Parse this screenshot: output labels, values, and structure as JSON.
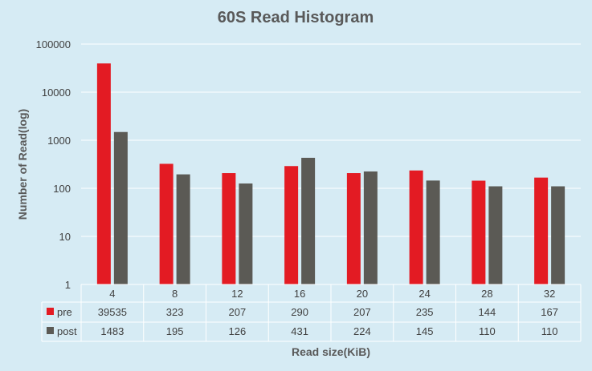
{
  "chart_data": {
    "type": "bar",
    "title": "60S Read Histogram",
    "xlabel": "Read size(KiB)",
    "ylabel": "Number of Read(log)",
    "y_scale": "log",
    "ylim": [
      1,
      100000
    ],
    "y_ticks": [
      "1",
      "10",
      "100",
      "1000",
      "10000",
      "100000"
    ],
    "grid": true,
    "legend_placement": "data-table",
    "categories": [
      "4",
      "8",
      "12",
      "16",
      "20",
      "24",
      "28",
      "32"
    ],
    "series": [
      {
        "name": "pre",
        "color": "#e31b23",
        "values": [
          39535,
          323,
          207,
          290,
          207,
          235,
          144,
          167
        ]
      },
      {
        "name": "post",
        "color": "#5b5a55",
        "values": [
          1483,
          195,
          126,
          431,
          224,
          145,
          110,
          110
        ]
      }
    ]
  }
}
